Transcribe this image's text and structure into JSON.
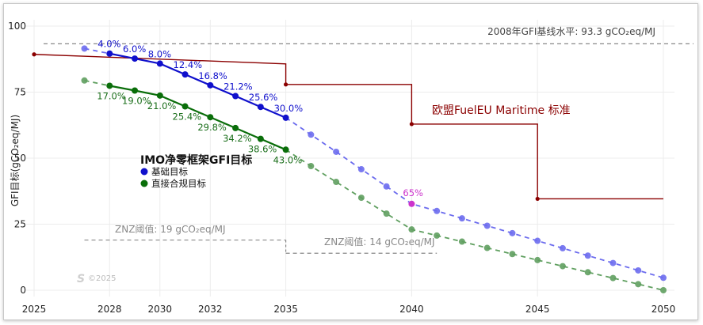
{
  "chart_data": {
    "type": "line",
    "ylabel": "GFI目标(gCO₂eq/MJ)",
    "xlim": [
      2025,
      2050
    ],
    "ylim": [
      0,
      100
    ],
    "x_ticks": [
      2025,
      2028,
      2030,
      2032,
      2035,
      2040,
      2045,
      2050
    ],
    "y_ticks": [
      0,
      25,
      50,
      75,
      100
    ],
    "legend_title": "IMO净零框架GFI目标",
    "legend_items": [
      "基础目标",
      "直接合规目标"
    ],
    "colors": {
      "base": "#1010cc",
      "direct": "#0a6e0a",
      "eu": "#8b0000",
      "ref": "#888888",
      "highlight": "#cc33cc"
    },
    "baseline_label": "2008年GFI基线水平: 93.3 gCO₂eq/MJ",
    "baseline_value": 93.3,
    "eu_label": "欧盟FuelEU Maritime 标准",
    "eu_steps": [
      {
        "x": 2025,
        "y": 89.3
      },
      {
        "x": 2035,
        "y": 85.7
      },
      {
        "x": 2035,
        "y": 77.9
      },
      {
        "x": 2040,
        "y": 77.9
      },
      {
        "x": 2040,
        "y": 62.9
      },
      {
        "x": 2045,
        "y": 62.9
      },
      {
        "x": 2045,
        "y": 34.6
      },
      {
        "x": 2050,
        "y": 34.6
      }
    ],
    "eu_points": [
      {
        "x": 2025,
        "y": 89.3
      },
      {
        "x": 2035,
        "y": 77.9
      },
      {
        "x": 2040,
        "y": 62.9
      },
      {
        "x": 2045,
        "y": 34.6
      }
    ],
    "znz": [
      {
        "label": "ZNZ阈值: 19 gCO₂eq/MJ",
        "value": 19,
        "x_from": 2027,
        "x_to": 2035
      },
      {
        "label": "ZNZ阈值: 14 gCO₂eq/MJ",
        "value": 14,
        "x_from": 2035,
        "x_to": 2041
      }
    ],
    "series": [
      {
        "name": "基础目标",
        "solid": [
          {
            "x": 2028,
            "y": 89.6,
            "label": "4.0%"
          },
          {
            "x": 2029,
            "y": 87.7,
            "label": "6.0%"
          },
          {
            "x": 2030,
            "y": 85.8,
            "label": "8.0%"
          },
          {
            "x": 2031,
            "y": 81.7,
            "label": "12.4%"
          },
          {
            "x": 2032,
            "y": 77.6,
            "label": "16.8%"
          },
          {
            "x": 2033,
            "y": 73.5,
            "label": "21.2%"
          },
          {
            "x": 2034,
            "y": 69.4,
            "label": "25.6%"
          },
          {
            "x": 2035,
            "y": 65.3,
            "label": "30.0%"
          }
        ],
        "dashed": [
          {
            "x": 2027,
            "y": 91.5
          },
          {
            "x": 2036,
            "y": 58.9
          },
          {
            "x": 2037,
            "y": 52.4
          },
          {
            "x": 2038,
            "y": 45.8
          },
          {
            "x": 2039,
            "y": 39.3
          },
          {
            "x": 2040,
            "y": 32.7,
            "label": "65%",
            "highlight": true
          },
          {
            "x": 2041,
            "y": 30.0
          },
          {
            "x": 2042,
            "y": 27.2
          },
          {
            "x": 2043,
            "y": 24.4
          },
          {
            "x": 2044,
            "y": 21.6
          },
          {
            "x": 2045,
            "y": 18.7
          },
          {
            "x": 2046,
            "y": 15.9
          },
          {
            "x": 2047,
            "y": 13.1
          },
          {
            "x": 2048,
            "y": 10.3
          },
          {
            "x": 2049,
            "y": 7.5
          },
          {
            "x": 2050,
            "y": 4.7
          }
        ]
      },
      {
        "name": "直接合规目标",
        "solid": [
          {
            "x": 2028,
            "y": 77.4,
            "label": "17.0%"
          },
          {
            "x": 2029,
            "y": 75.6,
            "label": "19.0%"
          },
          {
            "x": 2030,
            "y": 73.7,
            "label": "21.0%"
          },
          {
            "x": 2031,
            "y": 69.6,
            "label": "25.4%"
          },
          {
            "x": 2032,
            "y": 65.5,
            "label": "29.8%"
          },
          {
            "x": 2033,
            "y": 61.4,
            "label": "34.2%"
          },
          {
            "x": 2034,
            "y": 57.3,
            "label": "38.6%"
          },
          {
            "x": 2035,
            "y": 53.2,
            "label": "43.0%"
          }
        ],
        "dashed": [
          {
            "x": 2027,
            "y": 79.4
          },
          {
            "x": 2036,
            "y": 47.0
          },
          {
            "x": 2037,
            "y": 41.0
          },
          {
            "x": 2038,
            "y": 35.0
          },
          {
            "x": 2039,
            "y": 29.0
          },
          {
            "x": 2040,
            "y": 23.0
          },
          {
            "x": 2041,
            "y": 20.7
          },
          {
            "x": 2042,
            "y": 18.4
          },
          {
            "x": 2043,
            "y": 16.0
          },
          {
            "x": 2044,
            "y": 13.7
          },
          {
            "x": 2045,
            "y": 11.4
          },
          {
            "x": 2046,
            "y": 9.1
          },
          {
            "x": 2047,
            "y": 6.8
          },
          {
            "x": 2048,
            "y": 4.6
          },
          {
            "x": 2049,
            "y": 2.3
          },
          {
            "x": 2050,
            "y": 0.0
          }
        ]
      }
    ]
  },
  "watermark": "©2025"
}
